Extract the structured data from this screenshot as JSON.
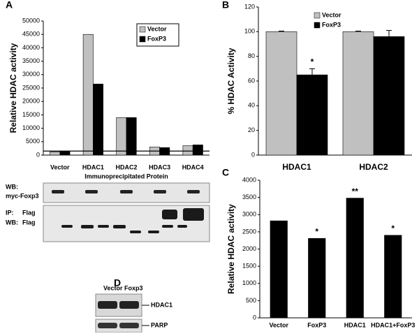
{
  "chart_data": [
    {
      "type": "bar",
      "panel": "A",
      "ylabel": "Relative HDAC activity",
      "xlabel": "Immunoprecipitated Protein",
      "categories": [
        "Vector",
        "HDAC1",
        "HDAC2",
        "HDAC3",
        "HDAC4"
      ],
      "series": [
        {
          "name": "Vector",
          "color": "#c0c0c0",
          "values": [
            1200,
            45000,
            14000,
            3000,
            3500
          ]
        },
        {
          "name": "FoxP3",
          "color": "#000000",
          "values": [
            1500,
            26500,
            14000,
            2800,
            3800
          ]
        }
      ],
      "reference_line": 1500,
      "ylim": [
        0,
        50000
      ],
      "yticks": [
        0,
        5000,
        10000,
        15000,
        20000,
        25000,
        30000,
        35000,
        40000,
        45000,
        50000
      ],
      "legend": "top-right"
    },
    {
      "type": "bar",
      "panel": "B",
      "ylabel": "% HDAC Activity",
      "categories": [
        "HDAC1",
        "HDAC2"
      ],
      "series": [
        {
          "name": "Vector",
          "color": "#c0c0c0",
          "values": [
            100,
            100
          ],
          "errors": [
            0.5,
            0.5
          ]
        },
        {
          "name": "FoxP3",
          "color": "#000000",
          "values": [
            65,
            96
          ],
          "errors": [
            5,
            5
          ],
          "annotations": [
            "*",
            null
          ]
        }
      ],
      "ylim": [
        0,
        120
      ],
      "yticks": [
        0,
        20,
        40,
        60,
        80,
        100,
        120
      ],
      "legend": "top-center"
    },
    {
      "type": "bar",
      "panel": "C",
      "ylabel": "Relative HDAC activity",
      "categories": [
        "Vector",
        "FoxP3",
        "HDAC1",
        "HDAC1+FoxP3"
      ],
      "series": [
        {
          "name": null,
          "color": "#000000",
          "values": [
            2820,
            2310,
            3480,
            2400
          ],
          "annotations": [
            null,
            "*",
            "**",
            "*"
          ]
        }
      ],
      "ylim": [
        0,
        4000
      ],
      "yticks": [
        0,
        500,
        1000,
        1500,
        2000,
        2500,
        3000,
        3500,
        4000
      ]
    }
  ],
  "blots": {
    "panel_a": {
      "wb1": "WB:",
      "wb1_target": "myc-Foxp3",
      "ip": "IP:",
      "ip_target": "Flag",
      "wb2": "WB:",
      "wb2_target": "Flag"
    },
    "panel_d": {
      "label": "D",
      "lane1": "Vector",
      "lane2": "Foxp3",
      "band1": "HDAC1",
      "band2": "PARP"
    }
  }
}
